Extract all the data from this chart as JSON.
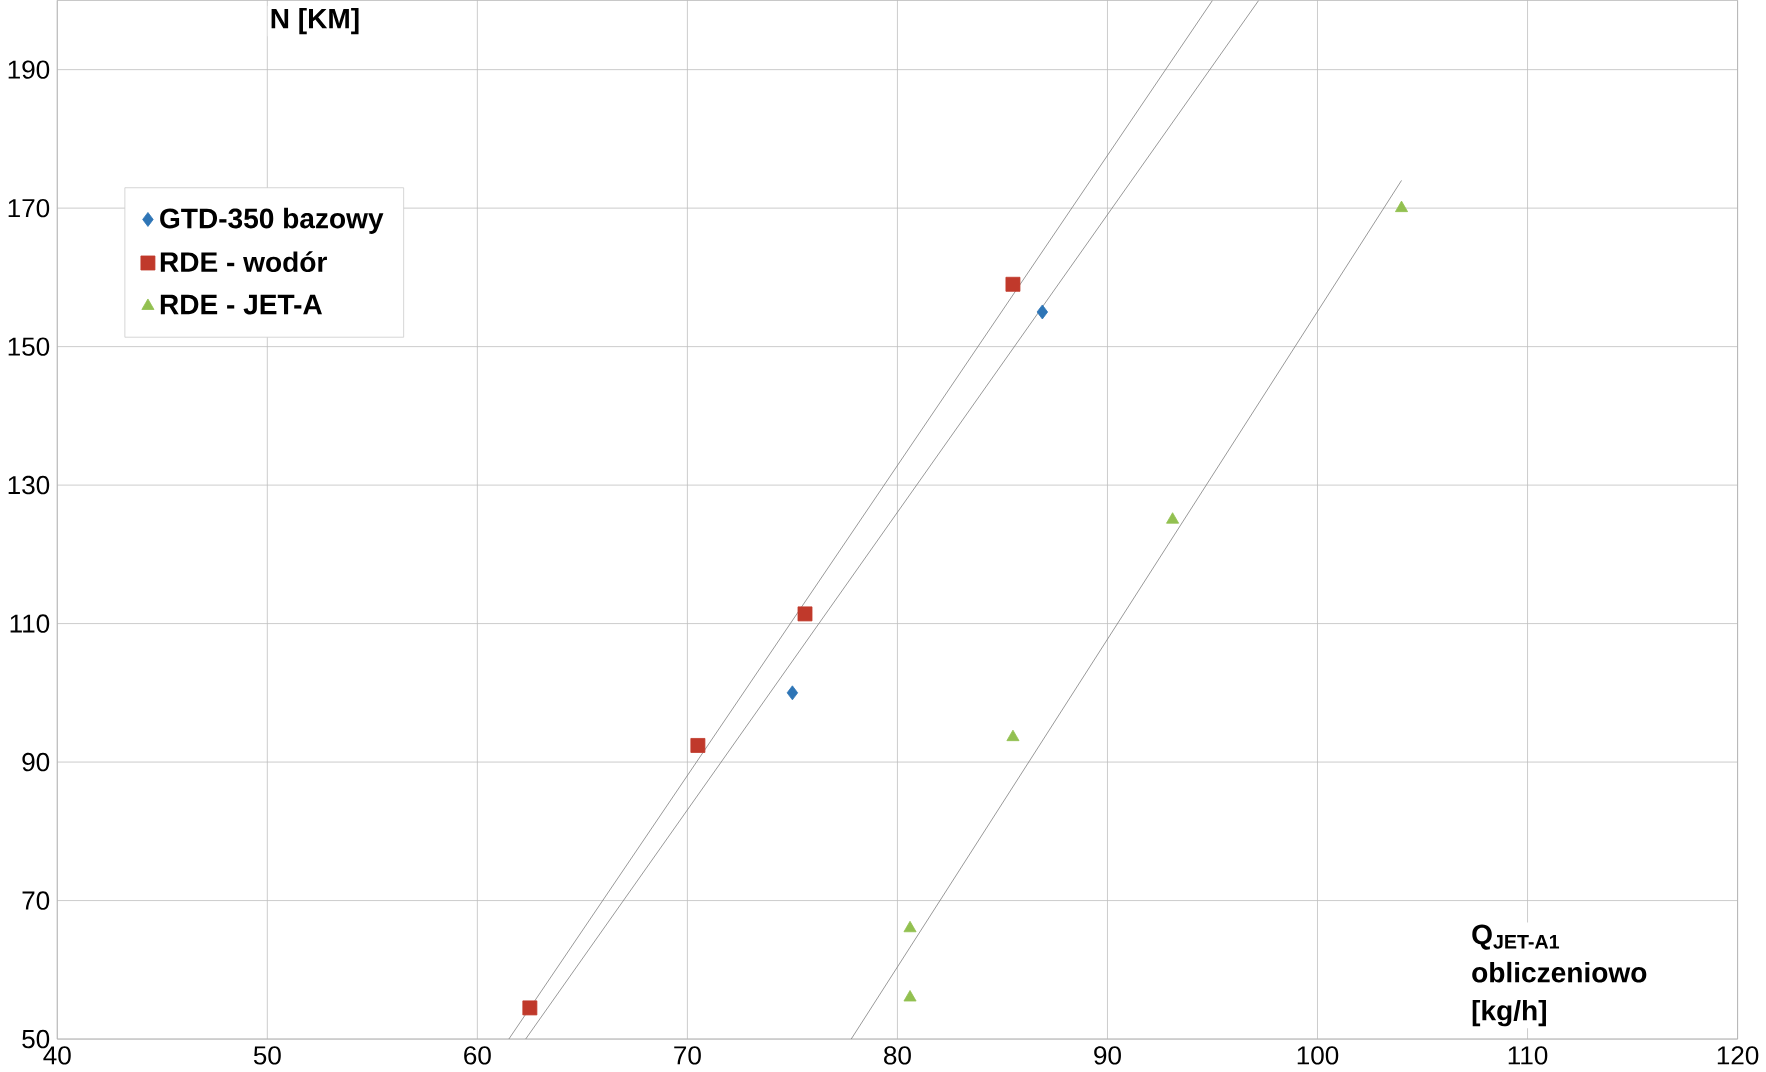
{
  "chart_data": {
    "type": "scatter",
    "xlabel": "Q$_{JET-A1}$ obliczeniowo [kg/h]",
    "ylabel": "N [KM]",
    "xlim": [
      40,
      120
    ],
    "ylim": [
      50,
      200
    ],
    "xticks": [
      40,
      50,
      60,
      70,
      80,
      90,
      100,
      110,
      120
    ],
    "yticks": [
      50,
      70,
      90,
      110,
      130,
      150,
      170,
      190
    ],
    "grid": true,
    "legend": "top left",
    "series": [
      {
        "name": "GTD-350 bazowy",
        "color": "#2e75b6",
        "marker": "diamond",
        "x": [
          75,
          86.9
        ],
        "values": [
          100,
          155
        ]
      },
      {
        "name": "RDE - wodór",
        "color": "#c0392b",
        "marker": "square",
        "x": [
          62.5,
          70.5,
          75.6,
          85.5
        ],
        "values": [
          54.5,
          92.4,
          111.4,
          159
        ]
      },
      {
        "name": "RDE - JET-A",
        "color": "#92c050",
        "marker": "triangle",
        "x": [
          80.6,
          80.6,
          85.5,
          93.1,
          104
        ],
        "values": [
          56,
          66,
          93.6,
          125,
          170
        ]
      },
      {
        "type": "line",
        "color": "#808080",
        "marker": "none",
        "x": [
          61.5,
          95
        ],
        "values": [
          50,
          200
        ]
      },
      {
        "type": "line",
        "color": "#808080",
        "marker": "none",
        "x": [
          62.3,
          97.2
        ],
        "values": [
          50,
          200
        ]
      },
      {
        "type": "line",
        "color": "#808080",
        "marker": "none",
        "x": [
          77.8,
          104
        ],
        "values": [
          50,
          174
        ]
      }
    ]
  }
}
